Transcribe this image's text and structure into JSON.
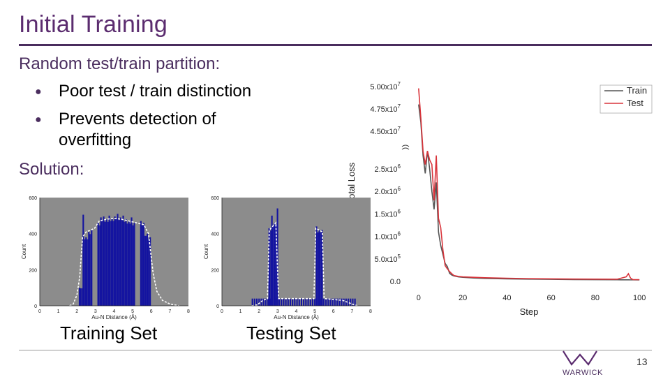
{
  "slide": {
    "title": "Initial Training",
    "heading": "Random test/train partition:",
    "bullets": [
      "Poor test / train distinction",
      "Prevents detection of",
      "overfitting"
    ],
    "solution": "Solution:",
    "captions": {
      "train": "Training Set",
      "test": "Testing Set"
    },
    "page_number": "13",
    "logo_text": "WARWICK"
  },
  "colors": {
    "title": "#5b2c6f",
    "accent": "#4a2d5e",
    "train_line": "#555555",
    "test_line": "#d9343b",
    "bar": "#1414a0",
    "hist_bg": "#8c8c8c"
  },
  "chart_data": [
    {
      "type": "line",
      "xlabel": "Step",
      "ylabel": "Total Loss",
      "xlim": [
        0,
        100
      ],
      "x_ticks": [
        0,
        20,
        40,
        60,
        80,
        100
      ],
      "y_ticks_upper": [
        "4.50x10^7",
        "4.75x10^7",
        "5.00x10^7"
      ],
      "y_ticks_lower": [
        "0.0",
        "5.0x10^5",
        "1.0x10^6",
        "1.5x10^6",
        "2.0x10^6",
        "2.5x10^6"
      ],
      "y_break": true,
      "legend": "top-right",
      "series": [
        {
          "name": "Train",
          "x": [
            0,
            1,
            2,
            3,
            4,
            5,
            6,
            7,
            8,
            9,
            10,
            11,
            12,
            13,
            14,
            15,
            16,
            18,
            20,
            25,
            30,
            40,
            50,
            60,
            70,
            80,
            90,
            94,
            95,
            96,
            97,
            100
          ],
          "y": [
            48000000,
            46000000,
            2800000,
            2400000,
            2900000,
            2500000,
            2000000,
            1600000,
            2200000,
            1100000,
            800000,
            600000,
            400000,
            330000,
            180000,
            140000,
            120000,
            100000,
            90000,
            75000,
            65000,
            55000,
            50000,
            45000,
            40000,
            38000,
            35000,
            34000,
            34000,
            33000,
            33000,
            32000
          ]
        },
        {
          "name": "Test",
          "x": [
            0,
            1,
            2,
            3,
            4,
            5,
            6,
            7,
            8,
            9,
            10,
            11,
            12,
            13,
            14,
            15,
            16,
            18,
            20,
            25,
            30,
            40,
            50,
            60,
            70,
            80,
            90,
            94,
            95,
            96,
            97,
            100
          ],
          "y": [
            49800000,
            46500000,
            2900000,
            2600000,
            2900000,
            2700000,
            2600000,
            1800000,
            2800000,
            1400000,
            1200000,
            700000,
            350000,
            280000,
            220000,
            170000,
            130000,
            110000,
            100000,
            90000,
            80000,
            70000,
            60000,
            55000,
            52000,
            50000,
            48000,
            100000,
            170000,
            70000,
            40000,
            38000
          ]
        }
      ]
    },
    {
      "type": "bar",
      "name": "training-histogram",
      "xlabel": "Au-N Distance (Å)",
      "ylabel": "Count",
      "xlim": [
        0,
        8
      ],
      "ylim": [
        0,
        600
      ],
      "x_ticks": [
        0,
        1,
        2,
        3,
        4,
        5,
        6,
        7,
        8
      ],
      "y_ticks": [
        0,
        200,
        400,
        600
      ],
      "bars": [
        [
          2.1,
          100
        ],
        [
          2.3,
          505
        ],
        [
          2.45,
          380
        ],
        [
          2.6,
          410
        ],
        [
          2.75,
          420
        ],
        [
          3.1,
          460
        ],
        [
          3.25,
          490
        ],
        [
          3.4,
          495
        ],
        [
          3.55,
          480
        ],
        [
          3.7,
          500
        ],
        [
          3.85,
          485
        ],
        [
          4.0,
          495
        ],
        [
          4.15,
          510
        ],
        [
          4.3,
          490
        ],
        [
          4.45,
          500
        ],
        [
          4.6,
          480
        ],
        [
          4.75,
          470
        ],
        [
          4.9,
          490
        ],
        [
          5.05,
          460
        ],
        [
          5.4,
          470
        ],
        [
          5.55,
          460
        ],
        [
          5.75,
          400
        ],
        [
          5.9,
          380
        ]
      ],
      "envelope": [
        [
          1.6,
          0
        ],
        [
          1.8,
          10
        ],
        [
          2.0,
          60
        ],
        [
          2.15,
          160
        ],
        [
          2.3,
          380
        ],
        [
          2.5,
          410
        ],
        [
          2.75,
          420
        ],
        [
          2.95,
          430
        ],
        [
          3.2,
          470
        ],
        [
          3.6,
          480
        ],
        [
          4.0,
          485
        ],
        [
          4.4,
          480
        ],
        [
          4.8,
          470
        ],
        [
          5.2,
          460
        ],
        [
          5.6,
          450
        ],
        [
          5.85,
          400
        ],
        [
          6.1,
          180
        ],
        [
          6.3,
          80
        ],
        [
          6.6,
          30
        ],
        [
          7.0,
          10
        ],
        [
          7.5,
          0
        ]
      ]
    },
    {
      "type": "bar",
      "name": "testing-histogram",
      "xlabel": "Au-N Distance (Å)",
      "ylabel": "Count",
      "xlim": [
        0,
        8
      ],
      "ylim": [
        0,
        600
      ],
      "x_ticks": [
        0,
        1,
        2,
        3,
        4,
        5,
        6,
        7,
        8
      ],
      "y_ticks": [
        0,
        200,
        400,
        600
      ],
      "bars": [
        [
          2.5,
          430
        ],
        [
          2.65,
          500
        ],
        [
          2.8,
          460
        ],
        [
          2.95,
          540
        ],
        [
          5.05,
          440
        ],
        [
          5.2,
          420
        ],
        [
          5.35,
          420
        ]
      ],
      "low_bars": {
        "from": 1.6,
        "to": 7.2,
        "value": 40
      },
      "envelope": [
        [
          1.6,
          0
        ],
        [
          1.9,
          5
        ],
        [
          2.2,
          30
        ],
        [
          2.45,
          40
        ],
        [
          2.55,
          420
        ],
        [
          2.9,
          460
        ],
        [
          3.05,
          40
        ],
        [
          4.95,
          40
        ],
        [
          5.05,
          430
        ],
        [
          5.4,
          410
        ],
        [
          5.5,
          40
        ],
        [
          6.5,
          30
        ],
        [
          7.0,
          10
        ],
        [
          7.3,
          0
        ]
      ]
    }
  ]
}
